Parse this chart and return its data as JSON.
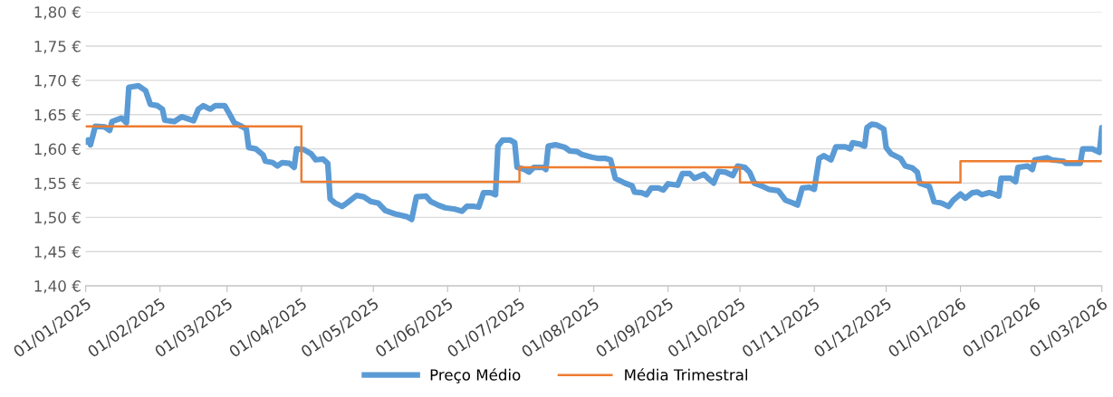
{
  "chart_data": {
    "type": "line",
    "series": [
      {
        "name": "Preço Médio",
        "color": "#5b9bd5",
        "x": [
          "2025-01-01",
          "2025-01-02",
          "2025-01-03",
          "2025-01-05",
          "2025-01-09",
          "2025-01-11",
          "2025-01-12",
          "2025-01-16",
          "2025-01-18",
          "2025-01-19",
          "2025-01-23",
          "2025-01-26",
          "2025-01-28",
          "2025-01-31",
          "2025-02-02",
          "2025-02-03",
          "2025-02-07",
          "2025-02-10",
          "2025-02-15",
          "2025-02-17",
          "2025-02-19",
          "2025-02-22",
          "2025-02-24",
          "2025-02-28",
          "2025-03-02",
          "2025-03-04",
          "2025-03-07",
          "2025-03-09",
          "2025-03-10",
          "2025-03-13",
          "2025-03-16",
          "2025-03-17",
          "2025-03-20",
          "2025-03-22",
          "2025-03-24",
          "2025-03-27",
          "2025-03-29",
          "2025-03-30",
          "2025-04-02",
          "2025-04-05",
          "2025-04-07",
          "2025-04-10",
          "2025-04-12",
          "2025-04-13",
          "2025-04-15",
          "2025-04-18",
          "2025-04-20",
          "2025-04-24",
          "2025-04-27",
          "2025-04-30",
          "2025-05-03",
          "2025-05-06",
          "2025-05-10",
          "2025-05-15",
          "2025-05-17",
          "2025-05-19",
          "2025-05-23",
          "2025-05-25",
          "2025-05-28",
          "2025-05-31",
          "2025-06-04",
          "2025-06-07",
          "2025-06-09",
          "2025-06-12",
          "2025-06-14",
          "2025-06-16",
          "2025-06-19",
          "2025-06-21",
          "2025-06-22",
          "2025-06-24",
          "2025-06-27",
          "2025-06-29",
          "2025-06-30",
          "2025-07-03",
          "2025-07-05",
          "2025-07-07",
          "2025-07-11",
          "2025-07-12",
          "2025-07-13",
          "2025-07-16",
          "2025-07-20",
          "2025-07-22",
          "2025-07-25",
          "2025-07-27",
          "2025-07-31",
          "2025-08-03",
          "2025-08-06",
          "2025-08-08",
          "2025-08-10",
          "2025-08-14",
          "2025-08-17",
          "2025-08-18",
          "2025-08-21",
          "2025-08-23",
          "2025-08-25",
          "2025-08-28",
          "2025-08-30",
          "2025-09-01",
          "2025-09-05",
          "2025-09-07",
          "2025-09-10",
          "2025-09-12",
          "2025-09-16",
          "2025-09-18",
          "2025-09-20",
          "2025-09-22",
          "2025-09-25",
          "2025-09-28",
          "2025-09-30",
          "2025-10-03",
          "2025-10-05",
          "2025-10-07",
          "2025-10-10",
          "2025-10-13",
          "2025-10-17",
          "2025-10-20",
          "2025-10-23",
          "2025-10-25",
          "2025-10-27",
          "2025-10-30",
          "2025-11-01",
          "2025-11-03",
          "2025-11-05",
          "2025-11-08",
          "2025-11-10",
          "2025-11-14",
          "2025-11-16",
          "2025-11-17",
          "2025-11-20",
          "2025-11-22",
          "2025-11-23",
          "2025-11-25",
          "2025-11-27",
          "2025-11-30",
          "2025-12-01",
          "2025-12-03",
          "2025-12-07",
          "2025-12-09",
          "2025-12-12",
          "2025-12-14",
          "2025-12-15",
          "2025-12-19",
          "2025-12-21",
          "2025-12-24",
          "2025-12-27",
          "2025-12-29",
          "2026-01-01",
          "2026-01-03",
          "2026-01-06",
          "2026-01-08",
          "2026-01-10",
          "2026-01-13",
          "2026-01-15",
          "2026-01-17",
          "2026-01-18",
          "2026-01-22",
          "2026-01-24",
          "2026-01-25",
          "2026-01-29",
          "2026-01-31",
          "2026-02-01",
          "2026-02-06",
          "2026-02-08",
          "2026-02-13",
          "2026-02-14",
          "2026-02-20",
          "2026-02-21",
          "2026-02-25",
          "2026-02-28",
          "2026-03-01"
        ],
        "values": [
          1.61,
          1.613,
          1.606,
          1.633,
          1.632,
          1.627,
          1.64,
          1.645,
          1.638,
          1.69,
          1.692,
          1.685,
          1.665,
          1.663,
          1.658,
          1.642,
          1.64,
          1.647,
          1.641,
          1.658,
          1.663,
          1.658,
          1.663,
          1.663,
          1.651,
          1.638,
          1.633,
          1.629,
          1.602,
          1.6,
          1.591,
          1.582,
          1.58,
          1.575,
          1.58,
          1.579,
          1.573,
          1.6,
          1.599,
          1.593,
          1.584,
          1.585,
          1.579,
          1.527,
          1.521,
          1.516,
          1.521,
          1.532,
          1.53,
          1.523,
          1.521,
          1.51,
          1.505,
          1.501,
          1.497,
          1.53,
          1.531,
          1.523,
          1.518,
          1.514,
          1.512,
          1.509,
          1.516,
          1.516,
          1.515,
          1.536,
          1.536,
          1.533,
          1.604,
          1.613,
          1.613,
          1.609,
          1.573,
          1.57,
          1.566,
          1.573,
          1.573,
          1.57,
          1.604,
          1.606,
          1.602,
          1.597,
          1.596,
          1.592,
          1.588,
          1.586,
          1.586,
          1.584,
          1.557,
          1.55,
          1.546,
          1.537,
          1.536,
          1.533,
          1.543,
          1.543,
          1.54,
          1.549,
          1.547,
          1.564,
          1.564,
          1.557,
          1.563,
          1.556,
          1.55,
          1.567,
          1.566,
          1.561,
          1.575,
          1.573,
          1.566,
          1.55,
          1.546,
          1.541,
          1.539,
          1.525,
          1.521,
          1.518,
          1.543,
          1.544,
          1.541,
          1.586,
          1.59,
          1.584,
          1.603,
          1.603,
          1.6,
          1.609,
          1.607,
          1.604,
          1.631,
          1.636,
          1.635,
          1.629,
          1.602,
          1.593,
          1.586,
          1.575,
          1.572,
          1.566,
          1.55,
          1.545,
          1.523,
          1.521,
          1.516,
          1.525,
          1.534,
          1.528,
          1.536,
          1.537,
          1.533,
          1.536,
          1.534,
          1.531,
          1.557,
          1.557,
          1.552,
          1.573,
          1.575,
          1.57,
          1.584,
          1.587,
          1.584,
          1.582,
          1.579,
          1.579,
          1.6,
          1.6,
          1.595,
          1.631
        ]
      },
      {
        "name": "Média Trimestral",
        "color": "#ed7d31",
        "type": "step",
        "x": [
          "2025-01-01",
          "2025-04-01",
          "2025-07-01",
          "2025-10-01",
          "2026-01-01",
          "2026-03-01"
        ],
        "values": [
          1.633,
          1.552,
          1.573,
          1.551,
          1.582,
          1.582
        ]
      }
    ],
    "xlim": [
      "2025-01-01",
      "2026-03-01"
    ],
    "xticks": [
      {
        "value": "2025-01-01",
        "label": "01/01/2025"
      },
      {
        "value": "2025-02-01",
        "label": "01/02/2025"
      },
      {
        "value": "2025-03-01",
        "label": "01/03/2025"
      },
      {
        "value": "2025-04-01",
        "label": "01/04/2025"
      },
      {
        "value": "2025-05-01",
        "label": "01/05/2025"
      },
      {
        "value": "2025-06-01",
        "label": "01/06/2025"
      },
      {
        "value": "2025-07-01",
        "label": "01/07/2025"
      },
      {
        "value": "2025-08-01",
        "label": "01/08/2025"
      },
      {
        "value": "2025-09-01",
        "label": "01/09/2025"
      },
      {
        "value": "2025-10-01",
        "label": "01/10/2025"
      },
      {
        "value": "2025-11-01",
        "label": "01/11/2025"
      },
      {
        "value": "2025-12-01",
        "label": "01/12/2025"
      },
      {
        "value": "2026-01-01",
        "label": "01/01/2026"
      },
      {
        "value": "2026-02-01",
        "label": "01/02/2026"
      },
      {
        "value": "2026-03-01",
        "label": "01/03/2026"
      }
    ],
    "ylim": [
      1.4,
      1.8
    ],
    "yticks": [
      {
        "value": 1.4,
        "label": "1,40 €"
      },
      {
        "value": 1.45,
        "label": "1,45 €"
      },
      {
        "value": 1.5,
        "label": "1,50 €"
      },
      {
        "value": 1.55,
        "label": "1,55 €"
      },
      {
        "value": 1.6,
        "label": "1,60 €"
      },
      {
        "value": 1.65,
        "label": "1,65 €"
      },
      {
        "value": 1.7,
        "label": "1,70 €"
      },
      {
        "value": 1.75,
        "label": "1,75 €"
      },
      {
        "value": 1.8,
        "label": "1,80 €"
      }
    ],
    "grid": "y",
    "legend": "bottom",
    "marker": "none"
  }
}
